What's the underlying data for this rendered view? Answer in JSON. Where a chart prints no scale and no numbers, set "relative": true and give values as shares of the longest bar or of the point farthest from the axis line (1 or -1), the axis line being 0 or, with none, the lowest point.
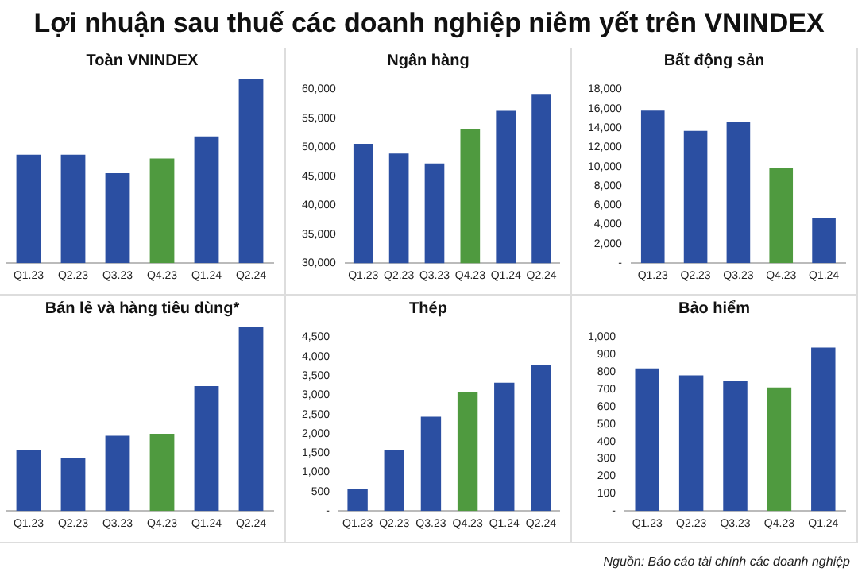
{
  "chart_data": [
    {
      "type": "other",
      "title": "Lợi nhuận sau thuế các doanh nghiệp niêm yết trên VNINDEX"
    },
    {
      "type": "bar",
      "title": "Toàn VNINDEX",
      "relative": true,
      "categories": [
        "Q1.23",
        "Q2.23",
        "Q3.23",
        "Q4.23",
        "Q1.24",
        "Q2.24"
      ],
      "values": [
        0.59,
        0.59,
        0.49,
        0.57,
        0.69,
        1
      ],
      "colors": [
        "#2b4fa2",
        "#2b4fa2",
        "#2b4fa2",
        "#4f9a3f",
        "#2b4fa2",
        "#2b4fa2"
      ]
    },
    {
      "type": "bar",
      "title": "Ngân hàng",
      "categories": [
        "Q1.23",
        "Q2.23",
        "Q3.23",
        "Q4.23",
        "Q1.24",
        "Q2.24"
      ],
      "values": [
        50600,
        48900,
        47200,
        53100,
        56300,
        59200
      ],
      "colors": [
        "#2b4fa2",
        "#2b4fa2",
        "#2b4fa2",
        "#4f9a3f",
        "#2b4fa2",
        "#2b4fa2"
      ],
      "ylim": [
        30000,
        60000
      ],
      "yticks": [
        {
          "value": 30000,
          "label": "30,000"
        },
        {
          "value": 35000,
          "label": "35,000"
        },
        {
          "value": 40000,
          "label": "40,000"
        },
        {
          "value": 45000,
          "label": "45,000"
        },
        {
          "value": 50000,
          "label": "50,000"
        },
        {
          "value": 55000,
          "label": "55,000"
        },
        {
          "value": 60000,
          "label": "60,000"
        }
      ]
    },
    {
      "type": "bar",
      "title": "Bất động sản",
      "categories": [
        "Q1.23",
        "Q2.23",
        "Q3.23",
        "Q4.23",
        "Q1.24"
      ],
      "values": [
        15800,
        13700,
        14600,
        9800,
        4700
      ],
      "colors": [
        "#2b4fa2",
        "#2b4fa2",
        "#2b4fa2",
        "#4f9a3f",
        "#2b4fa2"
      ],
      "ylim": [
        0,
        18000
      ],
      "yticks": [
        {
          "value": 0,
          "label": "-"
        },
        {
          "value": 2000,
          "label": "2,000"
        },
        {
          "value": 4000,
          "label": "4,000"
        },
        {
          "value": 6000,
          "label": "6,000"
        },
        {
          "value": 8000,
          "label": "8,000"
        },
        {
          "value": 10000,
          "label": "10,000"
        },
        {
          "value": 12000,
          "label": "12,000"
        },
        {
          "value": 14000,
          "label": "14,000"
        },
        {
          "value": 16000,
          "label": "16,000"
        },
        {
          "value": 18000,
          "label": "18,000"
        }
      ]
    },
    {
      "type": "bar",
      "title": "Bán lẻ và hàng tiêu dùng*",
      "relative": true,
      "categories": [
        "Q1.23",
        "Q2.23",
        "Q3.23",
        "Q4.23",
        "Q1.24",
        "Q2.24"
      ],
      "values": [
        0.33,
        0.29,
        0.41,
        0.42,
        0.68,
        1
      ],
      "colors": [
        "#2b4fa2",
        "#2b4fa2",
        "#2b4fa2",
        "#4f9a3f",
        "#2b4fa2",
        "#2b4fa2"
      ]
    },
    {
      "type": "bar",
      "title": "Thép",
      "categories": [
        "Q1.23",
        "Q2.23",
        "Q3.23",
        "Q4.23",
        "Q1.24",
        "Q2.24"
      ],
      "values": [
        560,
        1570,
        2440,
        3070,
        3320,
        3790
      ],
      "colors": [
        "#2b4fa2",
        "#2b4fa2",
        "#2b4fa2",
        "#4f9a3f",
        "#2b4fa2",
        "#2b4fa2"
      ],
      "ylim": [
        0,
        4500
      ],
      "yticks": [
        {
          "value": 0,
          "label": "-"
        },
        {
          "value": 500,
          "label": "500"
        },
        {
          "value": 1000,
          "label": "1,000"
        },
        {
          "value": 1500,
          "label": "1,500"
        },
        {
          "value": 2000,
          "label": "2,000"
        },
        {
          "value": 2500,
          "label": "2,500"
        },
        {
          "value": 3000,
          "label": "3,000"
        },
        {
          "value": 3500,
          "label": "3,500"
        },
        {
          "value": 4000,
          "label": "4,000"
        },
        {
          "value": 4500,
          "label": "4,500"
        }
      ]
    },
    {
      "type": "bar",
      "title": "Bảo hiểm",
      "categories": [
        "Q1.23",
        "Q2.23",
        "Q3.23",
        "Q4.23",
        "Q1.24"
      ],
      "values": [
        820,
        780,
        750,
        710,
        940
      ],
      "colors": [
        "#2b4fa2",
        "#2b4fa2",
        "#2b4fa2",
        "#4f9a3f",
        "#2b4fa2"
      ],
      "ylim": [
        0,
        1000
      ],
      "yticks": [
        {
          "value": 0,
          "label": "-"
        },
        {
          "value": 100,
          "label": "100"
        },
        {
          "value": 200,
          "label": "200"
        },
        {
          "value": 300,
          "label": "300"
        },
        {
          "value": 400,
          "label": "400"
        },
        {
          "value": 500,
          "label": "500"
        },
        {
          "value": 600,
          "label": "600"
        },
        {
          "value": 700,
          "label": "700"
        },
        {
          "value": 800,
          "label": "800"
        },
        {
          "value": 900,
          "label": "900"
        },
        {
          "value": 1000,
          "label": "1,000"
        }
      ],
      "annotations": [
        "Nguồn: Báo cáo tài chính các doanh nghiệp"
      ]
    }
  ]
}
